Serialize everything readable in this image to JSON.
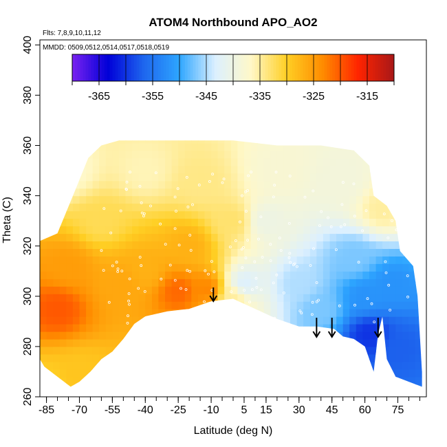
{
  "chart_data": {
    "type": "heatmap",
    "title": "ATOM4 Northbound APO_AO2",
    "flights_label": "Flts: 7,8,9,10,11,12",
    "dates_label": "MMDD: 0509,0512,0514,0517,0518,0519",
    "xlabel": "Latitude (deg N)",
    "ylabel": "Theta (C)",
    "xlim": [
      -88,
      88
    ],
    "ylim": [
      260,
      402
    ],
    "x_ticks": [
      -85,
      -70,
      -55,
      -40,
      -25,
      -10,
      5,
      15,
      30,
      45,
      60,
      75
    ],
    "x_tick_labels": [
      "-85",
      "-70",
      "-55",
      "-40",
      "-25",
      "-10",
      "5",
      "15",
      "30",
      "45",
      "60",
      "75"
    ],
    "y_ticks": [
      260,
      280,
      300,
      320,
      340,
      360,
      380,
      400
    ],
    "y_tick_labels": [
      "260",
      "280",
      "300",
      "320",
      "340",
      "360",
      "380",
      "400"
    ],
    "colorbar": {
      "min": -370,
      "max": -310,
      "ticks": [
        -365,
        -355,
        -345,
        -335,
        -325,
        -315
      ],
      "tick_labels": [
        "-365",
        "-355",
        "-345",
        "-335",
        "-325",
        "-315"
      ],
      "colors": [
        "#7a22f0",
        "#0000d8",
        "#1e66ee",
        "#2ea6ff",
        "#dcf0ff",
        "#fff8c8",
        "#ffcf24",
        "#ff8c00",
        "#ff2400",
        "#a81818"
      ]
    },
    "arrows_latitude": [
      -9,
      38,
      45,
      66
    ],
    "field_anchors": [
      {
        "lat": -80,
        "theta": 295,
        "value": -320
      },
      {
        "lat": -75,
        "theta": 312,
        "value": -325
      },
      {
        "lat": -70,
        "theta": 270,
        "value": -329
      },
      {
        "lat": -60,
        "theta": 330,
        "value": -332
      },
      {
        "lat": -50,
        "theta": 305,
        "value": -326
      },
      {
        "lat": -40,
        "theta": 310,
        "value": -327
      },
      {
        "lat": -25,
        "theta": 302,
        "value": -321
      },
      {
        "lat": -20,
        "theta": 320,
        "value": -327
      },
      {
        "lat": -12,
        "theta": 303,
        "value": -323
      },
      {
        "lat": -15,
        "theta": 345,
        "value": -334
      },
      {
        "lat": -40,
        "theta": 350,
        "value": -336
      },
      {
        "lat": -75,
        "theta": 350,
        "value": -337
      },
      {
        "lat": 0,
        "theta": 330,
        "value": -333
      },
      {
        "lat": 5,
        "theta": 305,
        "value": -343
      },
      {
        "lat": 15,
        "theta": 330,
        "value": -340
      },
      {
        "lat": 20,
        "theta": 350,
        "value": -338
      },
      {
        "lat": 30,
        "theta": 305,
        "value": -345
      },
      {
        "lat": 40,
        "theta": 295,
        "value": -347
      },
      {
        "lat": 50,
        "theta": 345,
        "value": -339
      },
      {
        "lat": 55,
        "theta": 315,
        "value": -347
      },
      {
        "lat": 62,
        "theta": 285,
        "value": -360
      },
      {
        "lat": 60,
        "theta": 300,
        "value": -352
      },
      {
        "lat": 72,
        "theta": 305,
        "value": -352
      },
      {
        "lat": 75,
        "theta": 280,
        "value": -357
      },
      {
        "lat": 68,
        "theta": 335,
        "value": -335
      },
      {
        "lat": -85,
        "theta": 265,
        "value": -330
      },
      {
        "lat": 0,
        "theta": 300,
        "value": -335
      }
    ]
  }
}
